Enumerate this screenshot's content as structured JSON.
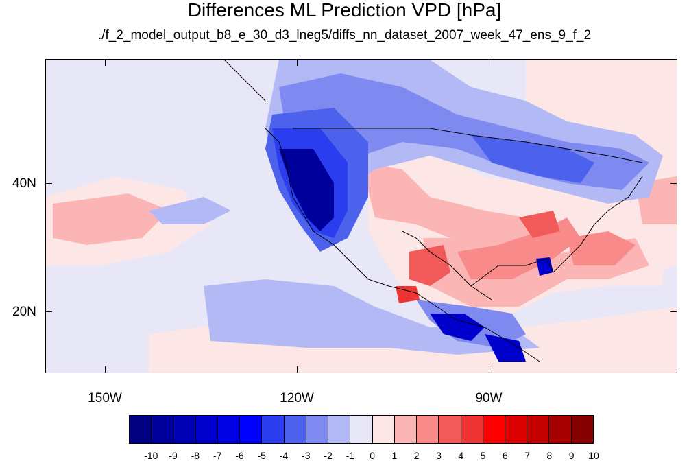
{
  "title": "Differences ML Prediction VPD [hPa]",
  "subtitle": "./f_2_model_output_b8_e_30_d3_lneg5/diffs_nn_dataset_2007_week_47_ens_9_f_2",
  "lat_labels": [
    "40N",
    "20N"
  ],
  "lon_labels": [
    "150W",
    "120W",
    "90W"
  ],
  "colorbar": {
    "labels": [
      "-10",
      "-9",
      "-8",
      "-7",
      "-6",
      "-5",
      "-4",
      "-3",
      "-2",
      "-1",
      "0",
      "1",
      "2",
      "3",
      "4",
      "5",
      "6",
      "7",
      "8",
      "9",
      "10"
    ],
    "colors": [
      "#000080",
      "#00009c",
      "#0000b4",
      "#0000cc",
      "#0000e4",
      "#0000ff",
      "#2a3ef0",
      "#4c62ec",
      "#7f8af0",
      "#b3b9f5",
      "#e7e7f7",
      "#fde6e6",
      "#fbb5b5",
      "#f88a8a",
      "#f25a5a",
      "#ee3434",
      "#ff0000",
      "#dc0000",
      "#c40000",
      "#a80000",
      "#850000"
    ]
  },
  "map_colors": {
    "background": "#e7e7f7",
    "light_blue": "#b3b9f5",
    "mid_blue": "#7f8af0",
    "blue": "#4c62ec",
    "strong_blue": "#2a3ef0",
    "dark_blue": "#0000cc",
    "navy": "#00009c",
    "light_pink": "#fde6e6",
    "pink": "#fbb5b5",
    "salmon": "#f88a8a",
    "red": "#f25a5a",
    "bright_red": "#ee3434"
  }
}
